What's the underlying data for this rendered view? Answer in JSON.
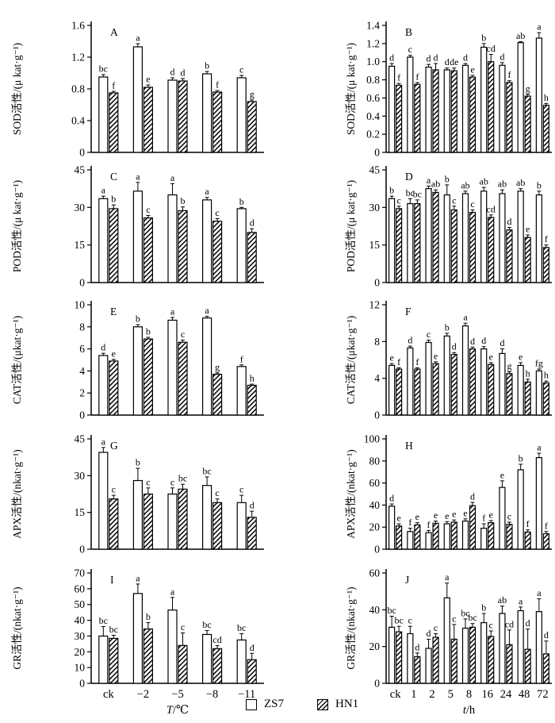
{
  "colors": {
    "foreground": "#000000",
    "background": "#ffffff"
  },
  "legend": {
    "items": [
      {
        "label": "ZS7",
        "swatch": "open-square-icon"
      },
      {
        "label": "HN1",
        "swatch": "hatched-square-icon"
      }
    ]
  },
  "chart_data": [
    {
      "panel": "A",
      "type": "bar",
      "ylabel": "SOD活性/(μ kat·g⁻¹)",
      "ylim": [
        0,
        1.6
      ],
      "yticks": [
        "0",
        "0.4",
        "0.8",
        "1.2",
        "1.6"
      ],
      "categories": [
        "ck",
        "−2",
        "−5",
        "−8",
        "−11"
      ],
      "show_x_labels": false,
      "xlabel_var": "",
      "xlabel_rest": "",
      "series": [
        {
          "name": "ZS7",
          "values": [
            0.95,
            1.33,
            0.91,
            0.99,
            0.94
          ],
          "errors": [
            0.03,
            0.04,
            0.03,
            0.03,
            0.03
          ],
          "letters": [
            "bc",
            "a",
            "d",
            "b",
            "c"
          ]
        },
        {
          "name": "HN1",
          "values": [
            0.75,
            0.82,
            0.9,
            0.76,
            0.64
          ],
          "errors": [
            0.02,
            0.03,
            0.03,
            0.02,
            0.02
          ],
          "letters": [
            "f",
            "e",
            "d",
            "f",
            "g"
          ]
        }
      ]
    },
    {
      "panel": "B",
      "type": "bar",
      "ylabel": "SOD活性/(μ kat·g⁻¹)",
      "ylim": [
        0,
        1.4
      ],
      "yticks": [
        "0",
        "0.2",
        "0.4",
        "0.6",
        "0.8",
        "1.0",
        "1.2",
        "1.4"
      ],
      "categories": [
        "ck",
        "1",
        "2",
        "5",
        "8",
        "16",
        "24",
        "48",
        "72"
      ],
      "show_x_labels": false,
      "xlabel_var": "",
      "xlabel_rest": "",
      "series": [
        {
          "name": "ZS7",
          "values": [
            0.95,
            1.05,
            0.94,
            0.91,
            0.96,
            1.16,
            0.96,
            1.21,
            1.26
          ],
          "errors": [
            0.03,
            0.02,
            0.03,
            0.02,
            0.02,
            0.04,
            0.03,
            0.01,
            0.06
          ],
          "letters": [
            "d",
            "c",
            "d",
            "d",
            "d",
            "b",
            "d",
            "ab",
            "a"
          ]
        },
        {
          "name": "HN1",
          "values": [
            0.74,
            0.75,
            0.91,
            0.9,
            0.83,
            1.0,
            0.77,
            0.62,
            0.52
          ],
          "errors": [
            0.02,
            0.02,
            0.07,
            0.03,
            0.02,
            0.08,
            0.02,
            0.02,
            0.02
          ],
          "letters": [
            "f",
            "f",
            "d",
            "de",
            "e",
            "cd",
            "f",
            "g",
            "h"
          ]
        }
      ]
    },
    {
      "panel": "C",
      "type": "bar",
      "ylabel": "POD活性/(μ kat·g⁻¹)",
      "ylim": [
        0,
        45
      ],
      "yticks": [
        "0",
        "15",
        "30",
        "45"
      ],
      "categories": [
        "ck",
        "−2",
        "−5",
        "−8",
        "−11"
      ],
      "show_x_labels": false,
      "xlabel_var": "",
      "xlabel_rest": "",
      "series": [
        {
          "name": "ZS7",
          "values": [
            33.5,
            36.5,
            35,
            33,
            29.5
          ],
          "errors": [
            1,
            3.5,
            4.5,
            1,
            0.5
          ],
          "letters": [
            "a",
            "a",
            "a",
            "a",
            "b"
          ]
        },
        {
          "name": "HN1",
          "values": [
            29.5,
            25.8,
            28.7,
            24.5,
            20
          ],
          "errors": [
            1.5,
            1,
            1.5,
            1,
            1.5
          ],
          "letters": [
            "b",
            "c",
            "b",
            "c",
            "d"
          ]
        }
      ]
    },
    {
      "panel": "D",
      "type": "bar",
      "ylabel": "POD活性/(μ kat·g⁻¹)",
      "ylim": [
        0,
        45
      ],
      "yticks": [
        "0",
        "15",
        "30",
        "45"
      ],
      "categories": [
        "ck",
        "1",
        "2",
        "5",
        "8",
        "16",
        "24",
        "48",
        "72"
      ],
      "show_x_labels": false,
      "xlabel_var": "",
      "xlabel_rest": "",
      "series": [
        {
          "name": "ZS7",
          "values": [
            33.5,
            31.5,
            37.5,
            35,
            35.5,
            36.5,
            35.5,
            36.5,
            35
          ],
          "errors": [
            1,
            2,
            1,
            4,
            1,
            1.5,
            1.5,
            1,
            1.5
          ],
          "letters": [
            "b",
            "bc",
            "a",
            "b",
            "ab",
            "ab",
            "ab",
            "ab",
            "b"
          ]
        },
        {
          "name": "HN1",
          "values": [
            29.5,
            31.5,
            36,
            29,
            28,
            26,
            21,
            18,
            14
          ],
          "errors": [
            1,
            1.5,
            1,
            1.5,
            1,
            1,
            1,
            1,
            1
          ],
          "letters": [
            "c",
            "bc",
            "ab",
            "c",
            "c",
            "cd",
            "d",
            "e",
            "f"
          ]
        }
      ]
    },
    {
      "panel": "E",
      "type": "bar",
      "ylabel": "CAT活性/(μkat·g⁻¹)",
      "ylim": [
        0,
        10
      ],
      "yticks": [
        "0",
        "2",
        "4",
        "6",
        "8",
        "10"
      ],
      "categories": [
        "ck",
        "−2",
        "−5",
        "−8",
        "−11"
      ],
      "show_x_labels": false,
      "xlabel_var": "",
      "xlabel_rest": "",
      "series": [
        {
          "name": "ZS7",
          "values": [
            5.4,
            8.0,
            8.6,
            8.8,
            4.4
          ],
          "errors": [
            0.2,
            0.2,
            0.25,
            0.15,
            0.15
          ],
          "letters": [
            "d",
            "b",
            "a",
            "a",
            "f"
          ]
        },
        {
          "name": "HN1",
          "values": [
            4.9,
            6.9,
            6.6,
            3.7,
            2.7
          ],
          "errors": [
            0.15,
            0.15,
            0.2,
            0.12,
            0.1
          ],
          "letters": [
            "e",
            "b",
            "c",
            "g",
            "h"
          ]
        }
      ]
    },
    {
      "panel": "F",
      "type": "bar",
      "ylabel": "CAT活性/(μkat·g⁻¹)",
      "ylim": [
        0,
        12
      ],
      "yticks": [
        "0",
        "4",
        "8",
        "12"
      ],
      "categories": [
        "ck",
        "1",
        "2",
        "5",
        "8",
        "16",
        "24",
        "48",
        "72"
      ],
      "show_x_labels": false,
      "xlabel_var": "",
      "xlabel_rest": "",
      "series": [
        {
          "name": "ZS7",
          "values": [
            5.4,
            7.3,
            7.9,
            8.6,
            9.7,
            7.2,
            6.7,
            5.4,
            4.8
          ],
          "errors": [
            0.2,
            0.2,
            0.25,
            0.3,
            0.3,
            0.25,
            0.5,
            0.3,
            0.2
          ],
          "letters": [
            "e",
            "d",
            "c",
            "b",
            "a",
            "d",
            "d",
            "e",
            "fg"
          ]
        },
        {
          "name": "HN1",
          "values": [
            5.0,
            5.0,
            5.6,
            6.6,
            7.2,
            5.5,
            4.5,
            3.6,
            3.5
          ],
          "errors": [
            0.15,
            0.15,
            0.2,
            0.2,
            0.2,
            0.2,
            0.2,
            0.3,
            0.2
          ],
          "letters": [
            "f",
            "f",
            "e",
            "d",
            "d",
            "e",
            "g",
            "h",
            "h"
          ]
        }
      ]
    },
    {
      "panel": "G",
      "type": "bar",
      "ylabel": "APX活性/(nkat·g⁻¹)",
      "ylim": [
        0,
        45
      ],
      "yticks": [
        "0",
        "15",
        "30",
        "45"
      ],
      "categories": [
        "ck",
        "−2",
        "−5",
        "−8",
        "−11"
      ],
      "show_x_labels": false,
      "xlabel_var": "",
      "xlabel_rest": "",
      "series": [
        {
          "name": "ZS7",
          "values": [
            39.5,
            28,
            22.5,
            26,
            19
          ],
          "errors": [
            2,
            5,
            2.5,
            3.5,
            3
          ],
          "letters": [
            "a",
            "b",
            "c",
            "bc",
            "c"
          ]
        },
        {
          "name": "HN1",
          "values": [
            20.5,
            22.5,
            24.5,
            19,
            13
          ],
          "errors": [
            1.5,
            2.5,
            2,
            1.5,
            2.5
          ],
          "letters": [
            "c",
            "c",
            "bc",
            "c",
            "d"
          ]
        }
      ]
    },
    {
      "panel": "H",
      "type": "bar",
      "ylabel": "APX活性/(nkat·g⁻¹)",
      "ylim": [
        0,
        100
      ],
      "yticks": [
        "0",
        "20",
        "40",
        "60",
        "80",
        "100"
      ],
      "categories": [
        "ck",
        "1",
        "2",
        "5",
        "8",
        "16",
        "24",
        "48",
        "72"
      ],
      "show_x_labels": false,
      "xlabel_var": "",
      "xlabel_rest": "",
      "series": [
        {
          "name": "ZS7",
          "values": [
            39,
            16,
            15,
            23,
            25.5,
            19,
            56,
            72,
            83
          ],
          "errors": [
            2,
            3,
            2,
            2,
            2,
            4,
            6,
            5,
            4
          ],
          "letters": [
            "d",
            "f",
            "f",
            "e",
            "e",
            "f",
            "e",
            "b",
            "a"
          ]
        },
        {
          "name": "HN1",
          "values": [
            21,
            22,
            23.5,
            24.5,
            39.5,
            24,
            22.5,
            15.5,
            14
          ],
          "errors": [
            2,
            2,
            2,
            2,
            3,
            2,
            2,
            2,
            2
          ],
          "letters": [
            "e",
            "e",
            "e",
            "e",
            "d",
            "e",
            "c",
            "f",
            "f"
          ]
        }
      ]
    },
    {
      "panel": "I",
      "type": "bar",
      "ylabel": "GR活性/(nkat·g⁻¹)",
      "ylim": [
        0,
        70
      ],
      "yticks": [
        "0",
        "10",
        "20",
        "30",
        "40",
        "50",
        "60",
        "70"
      ],
      "categories": [
        "ck",
        "−2",
        "−5",
        "−8",
        "−11"
      ],
      "show_x_labels": true,
      "xlabel_var": "T",
      "xlabel_rest": "/℃",
      "series": [
        {
          "name": "ZS7",
          "values": [
            30,
            57,
            46.5,
            31,
            27.5
          ],
          "errors": [
            6,
            6,
            8,
            2.5,
            4
          ],
          "letters": [
            "bc",
            "a",
            "a",
            "bc",
            "bc"
          ]
        },
        {
          "name": "HN1",
          "values": [
            28.5,
            34.5,
            24,
            22,
            15
          ],
          "errors": [
            2,
            4,
            8,
            2,
            4
          ],
          "letters": [
            "bc",
            "b",
            "c",
            "cd",
            "d"
          ]
        }
      ]
    },
    {
      "panel": "J",
      "type": "bar",
      "ylabel": "GR活性/(nkat·g⁻¹)",
      "ylim": [
        0,
        60
      ],
      "yticks": [
        "0",
        "20",
        "40",
        "60"
      ],
      "categories": [
        "ck",
        "1",
        "2",
        "5",
        "8",
        "16",
        "24",
        "48",
        "72"
      ],
      "show_x_labels": true,
      "xlabel_var": "t",
      "xlabel_rest": "/h",
      "series": [
        {
          "name": "ZS7",
          "values": [
            30.5,
            27,
            19,
            46.5,
            30,
            33,
            38,
            39.5,
            39
          ],
          "errors": [
            6,
            4,
            5,
            8,
            5,
            5,
            4,
            2,
            7
          ],
          "letters": [
            "bc",
            "c",
            "d",
            "a",
            "bc",
            "b",
            "ab",
            "a",
            "a"
          ]
        },
        {
          "name": "HN1",
          "values": [
            28,
            14.5,
            25,
            24,
            30.5,
            25.5,
            21,
            18.5,
            16
          ],
          "errors": [
            3,
            2,
            2,
            8,
            2,
            3,
            8,
            11,
            7
          ],
          "letters": [
            "bc",
            "d",
            "c",
            "c",
            "bc",
            "c",
            "cd",
            "d",
            "d"
          ]
        }
      ]
    }
  ]
}
